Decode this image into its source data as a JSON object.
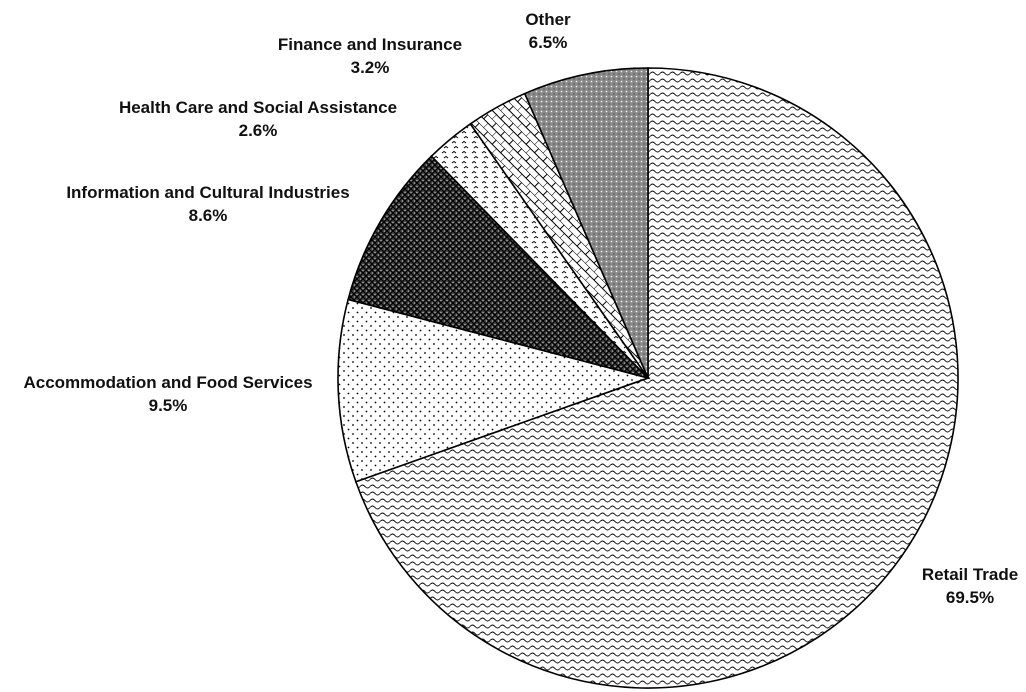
{
  "chart_data": {
    "type": "pie",
    "title": "",
    "slices": [
      {
        "label": "Retail Trade",
        "value": 69.5,
        "display": "69.5%",
        "pattern": "waves"
      },
      {
        "label": "Accommodation and Food Services",
        "value": 9.5,
        "display": "9.5%",
        "pattern": "dots"
      },
      {
        "label": "Information and Cultural Industries",
        "value": 8.6,
        "display": "8.6%",
        "pattern": "dark-crosshatch"
      },
      {
        "label": "Health Care and Social Assistance",
        "value": 2.6,
        "display": "2.6%",
        "pattern": "arrows"
      },
      {
        "label": "Finance and Insurance",
        "value": 3.2,
        "display": "3.2%",
        "pattern": "bricks"
      },
      {
        "label": "Other",
        "value": 6.5,
        "display": "6.5%",
        "pattern": "gray-dots"
      }
    ],
    "start_angle_deg": 0,
    "direction": "clockwise-from-top",
    "colors": {
      "stroke": "#000000",
      "fill_light": "#ffffff",
      "fill_dark": "#555555",
      "fill_gray": "#8a8a8a"
    }
  }
}
